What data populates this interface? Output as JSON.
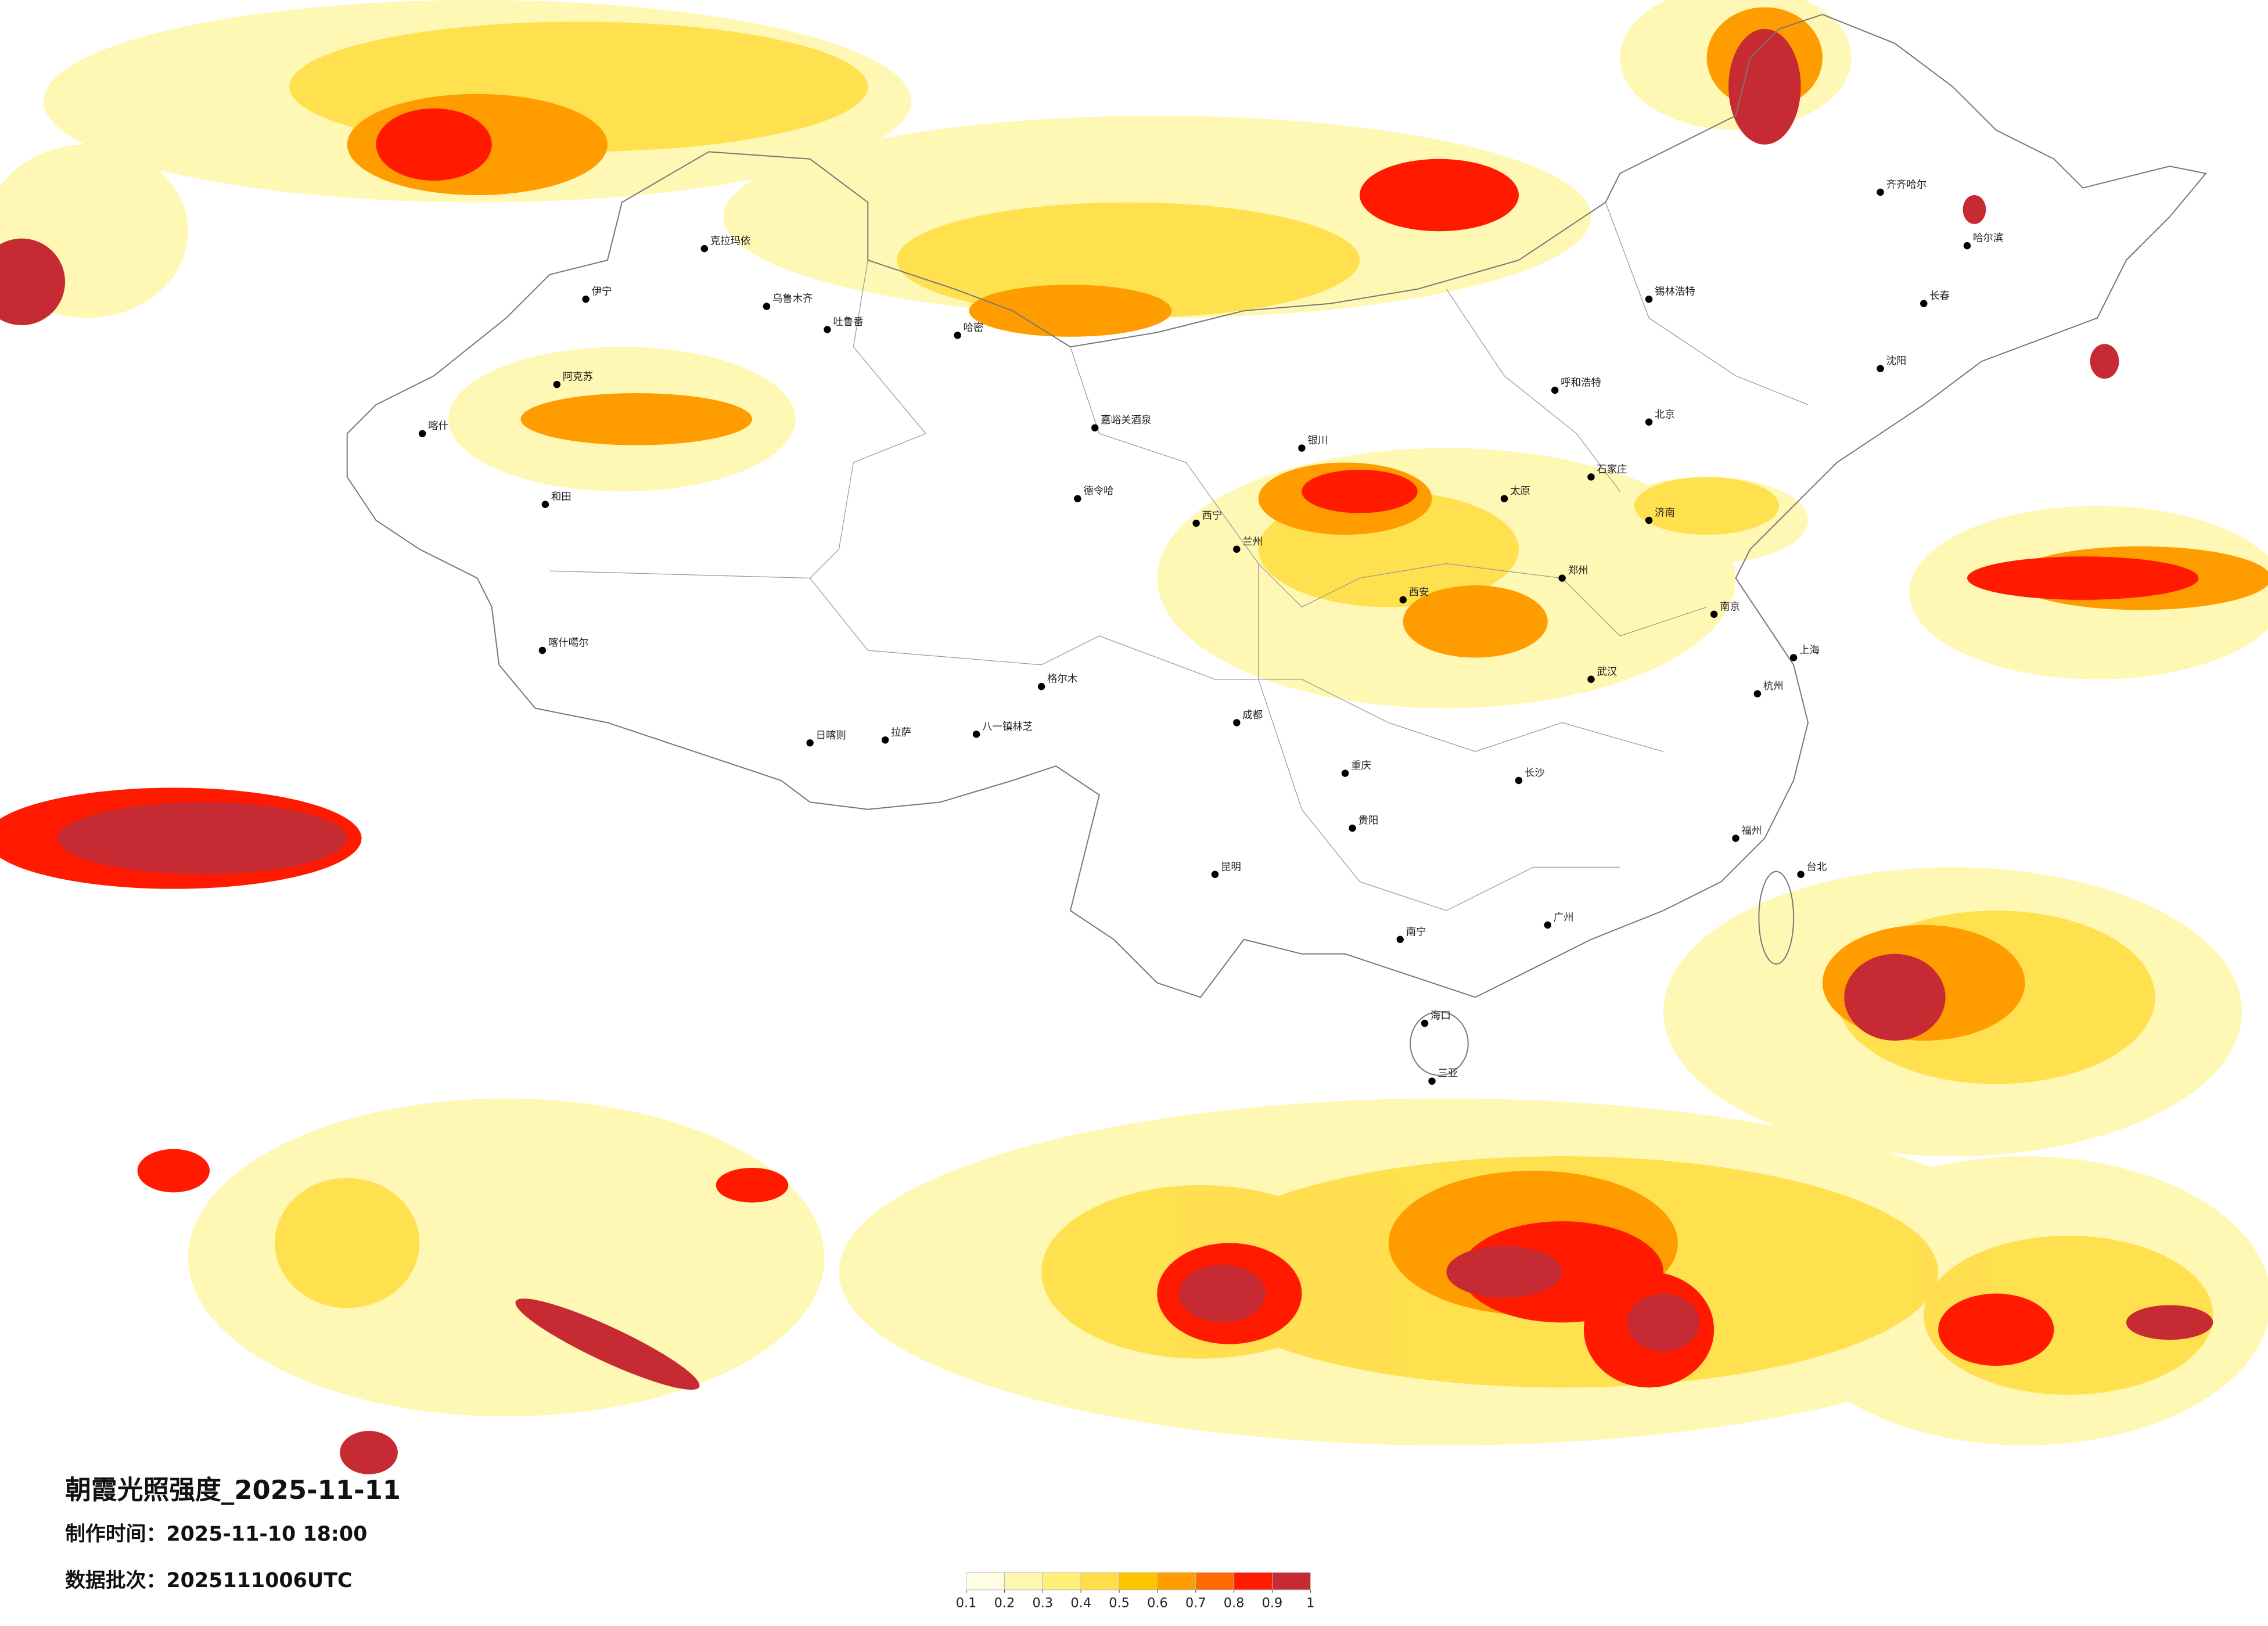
{
  "title": "朝霞光照强度_2025-11-11",
  "made_time": "制作时间：2025-11-10 18:00",
  "batch": "数据批次：2025111006UTC",
  "colorbar": {
    "ticks": [
      0.1,
      0.2,
      0.3,
      0.4,
      0.5,
      0.6,
      0.7,
      0.8,
      0.9,
      1
    ],
    "colors": [
      "#fffde3",
      "#fff7b0",
      "#fff07a",
      "#ffde4a",
      "#ffc400",
      "#ff9c00",
      "#ff6a00",
      "#ff1a00",
      "#c62a32"
    ]
  },
  "cities": [
    "克拉玛依",
    "伊宁",
    "乌鲁木齐",
    "吐鲁番",
    "阿克苏",
    "喀什",
    "和田",
    "哈密",
    "嘉峪关酒泉",
    "德令哈",
    "西宁",
    "兰州",
    "银川",
    "呼和浩特",
    "锡林浩特",
    "齐齐哈尔",
    "哈尔滨",
    "长春",
    "沈阳",
    "北京",
    "石家庄",
    "郑州",
    "西安",
    "成都",
    "重庆",
    "拉萨",
    "日喀则",
    "格尔木",
    "昆明",
    "贵阳",
    "南宁",
    "广州",
    "长沙",
    "武汉",
    "南京",
    "上海",
    "杭州",
    "福州",
    "台北",
    "海口",
    "三亚",
    "喀什噶尔",
    "八一镇林芝",
    "济南",
    "太原"
  ]
}
